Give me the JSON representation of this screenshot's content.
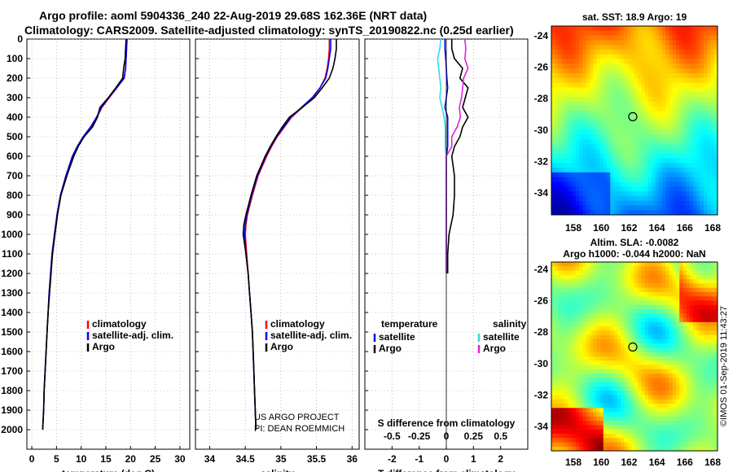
{
  "header": {
    "title_line1": "Argo profile: aoml 5904336_240 22-Aug-2019 29.68S 162.36E (NRT data)",
    "title_line2": "Climatology: CARS2009. Satellite-adjusted climatology: synTS_20190822.nc (0.25d earlier)"
  },
  "colors": {
    "climatology": "#ff0000",
    "satellite": "#0000ff",
    "argo": "#000000",
    "sat_salinity": "#33dddd",
    "argo_salinity": "#dd22dd"
  },
  "chart_data": [
    {
      "id": "temperature",
      "type": "line",
      "xlabel": "temperature (deg C)",
      "xlim": [
        -1,
        32
      ],
      "ylim": [
        2100,
        0
      ],
      "xticks": [
        "0",
        "5",
        "10",
        "15",
        "20",
        "25",
        "30"
      ],
      "xtick_values": [
        0,
        5,
        10,
        15,
        20,
        25,
        30
      ],
      "ytick_labels": [
        "0",
        "100",
        "200",
        "300",
        "400",
        "500",
        "600",
        "700",
        "800",
        "900",
        "1000",
        "1100",
        "1200",
        "1300",
        "1400",
        "1500",
        "1600",
        "1700",
        "1800",
        "1900",
        "2000"
      ],
      "depth": [
        0,
        50,
        100,
        150,
        200,
        250,
        300,
        350,
        400,
        450,
        500,
        550,
        600,
        700,
        800,
        900,
        1000,
        1100,
        1200,
        1300,
        1400,
        1500,
        1600,
        1700,
        1800,
        1900,
        2000
      ],
      "series": [
        {
          "name": "climatology",
          "values": [
            19.2,
            19.2,
            19.1,
            19,
            18.7,
            17.2,
            15.7,
            14.2,
            13.2,
            12,
            10.5,
            9.3,
            8.3,
            6.9,
            5.8,
            5.1,
            4.6,
            4.1,
            3.8,
            3.5,
            3.3,
            3.1,
            2.9,
            2.7,
            2.5,
            2.4,
            2.2
          ]
        },
        {
          "name": "satellite-adj. clim.",
          "values": [
            19.3,
            19.2,
            19.1,
            19,
            18.7,
            17.2,
            15.6,
            14.1,
            13.1,
            11.9,
            10.4,
            9.2,
            8.2,
            6.9,
            5.8,
            5.1,
            4.6,
            4.1,
            3.8,
            3.5,
            3.3,
            3.1,
            2.9,
            2.7,
            2.5,
            2.4,
            2.2
          ]
        },
        {
          "name": "Argo",
          "values": [
            19.1,
            19,
            18.9,
            18.6,
            18.4,
            17,
            15.5,
            13.8,
            13.3,
            12.3,
            10.6,
            9.4,
            8.5,
            7.1,
            5.9,
            5.2,
            4.7,
            4.2,
            3.9,
            3.6,
            3.3,
            3.1,
            2.9,
            2.7,
            2.5,
            2.4,
            2.2
          ]
        }
      ],
      "legend": [
        "climatology",
        "satellite-adj. clim.",
        "Argo"
      ]
    },
    {
      "id": "salinity",
      "type": "line",
      "xlabel": "salinity",
      "xlim": [
        33.8,
        36.1
      ],
      "ylim": [
        2100,
        0
      ],
      "xticks": [
        "34",
        "34.5",
        "35",
        "35.5",
        "36"
      ],
      "xtick_values": [
        34,
        34.5,
        35,
        35.5,
        36
      ],
      "depth": [
        0,
        50,
        100,
        150,
        200,
        250,
        300,
        350,
        400,
        450,
        500,
        550,
        600,
        700,
        800,
        900,
        950,
        1000,
        1050,
        1100,
        1200,
        1300,
        1400,
        1500,
        1600,
        1700,
        1800,
        1900,
        2000
      ],
      "series": [
        {
          "name": "climatology",
          "values": [
            35.68,
            35.68,
            35.67,
            35.65,
            35.62,
            35.55,
            35.45,
            35.3,
            35.15,
            35.05,
            34.95,
            34.87,
            34.8,
            34.68,
            34.6,
            34.53,
            34.51,
            34.5,
            34.51,
            34.52,
            34.54,
            34.56,
            34.58,
            34.6,
            34.61,
            34.62,
            34.63,
            34.64,
            34.65
          ]
        },
        {
          "name": "satellite-adj. clim.",
          "values": [
            35.7,
            35.7,
            35.68,
            35.66,
            35.63,
            35.55,
            35.44,
            35.29,
            35.14,
            35.04,
            34.94,
            34.86,
            34.79,
            34.67,
            34.59,
            34.52,
            34.5,
            34.49,
            34.5,
            34.51,
            34.54,
            34.56,
            34.58,
            34.6,
            34.61,
            34.62,
            34.63,
            34.64,
            34.65
          ]
        },
        {
          "name": "Argo",
          "values": [
            35.78,
            35.78,
            35.76,
            35.73,
            35.68,
            35.58,
            35.47,
            35.3,
            35.12,
            35.02,
            34.93,
            34.85,
            34.78,
            34.66,
            34.58,
            34.51,
            34.48,
            34.47,
            34.49,
            34.51,
            34.54,
            34.56,
            34.58,
            34.6,
            34.61,
            34.62,
            34.63,
            34.64,
            34.65
          ]
        }
      ],
      "legend": [
        "climatology",
        "satellite-adj. clim.",
        "Argo"
      ],
      "credit_line1": "US ARGO PROJECT",
      "credit_line2": "PI: DEAN ROEMMICH"
    },
    {
      "id": "difference",
      "type": "line",
      "xlabel": "T difference from climatology",
      "top_label": "S difference from climatology",
      "xlim": [
        -3,
        3
      ],
      "ylim": [
        2100,
        0
      ],
      "xticks": [
        "-2",
        "-1",
        "0",
        "1",
        "2"
      ],
      "xtick_values": [
        -2,
        -1,
        0,
        1,
        2
      ],
      "s_ticks": [
        "-0.5",
        "-0.25",
        "0",
        "0.25",
        "0.5"
      ],
      "s_tick_values": [
        -0.5,
        -0.25,
        0,
        0.25,
        0.5
      ],
      "depth": [
        0,
        50,
        100,
        150,
        200,
        250,
        300,
        350,
        400,
        450,
        500,
        550,
        600,
        700,
        800,
        900,
        1000,
        1100,
        1200
      ],
      "series": [
        {
          "name": "temperature satellite",
          "values": [
            -0.05,
            -0.05,
            -0.02,
            0,
            0.02,
            0.05,
            0,
            -0.05,
            0.05,
            0.05,
            0.05,
            0.05,
            0,
            0,
            0,
            0,
            0,
            0,
            0
          ]
        },
        {
          "name": "temperature Argo",
          "values": [
            0.2,
            0.2,
            0.3,
            0.6,
            0.5,
            0.8,
            0.7,
            0.6,
            0.8,
            0.6,
            0.5,
            0.3,
            0.2,
            0.3,
            0.3,
            0.25,
            0.1,
            0.05,
            0.05
          ]
        },
        {
          "name": "salinity satellite",
          "values": [
            -0.05,
            -0.06,
            -0.08,
            -0.07,
            -0.06,
            -0.05,
            -0.06,
            -0.04,
            -0.02,
            -0.01,
            -0.01,
            -0.01,
            0,
            0,
            0,
            0,
            0,
            0,
            0
          ]
        },
        {
          "name": "salinity Argo",
          "values": [
            0.17,
            0.18,
            0.17,
            0.2,
            0.16,
            0.15,
            0.14,
            0.12,
            0.13,
            0.1,
            0.05,
            0.05,
            0,
            0,
            0,
            0,
            0,
            0,
            0
          ]
        }
      ],
      "legend_temperature_title": "temperature",
      "legend_salinity_title": "salinity",
      "legend_items": [
        "satellite",
        "Argo"
      ]
    }
  ],
  "maps": {
    "sst": {
      "title": "sat. SST: 18.9 Argo: 19",
      "lat_ticks": [
        "-24",
        "-26",
        "-28",
        "-30",
        "-32",
        "-34"
      ],
      "lon_ticks": [
        "158",
        "160",
        "162",
        "164",
        "166",
        "168"
      ]
    },
    "sla": {
      "title_line1": "Altim. SLA: -0.0082",
      "title_line2": "Argo h1000: -0.044 h2000: NaN",
      "lat_ticks": [
        "-24",
        "-26",
        "-28",
        "-30",
        "-32",
        "-34"
      ],
      "lon_ticks": [
        "158",
        "160",
        "162",
        "164",
        "166",
        "168"
      ]
    },
    "stamp": "©IMOS 01-Sep-2019 11:43:27"
  }
}
